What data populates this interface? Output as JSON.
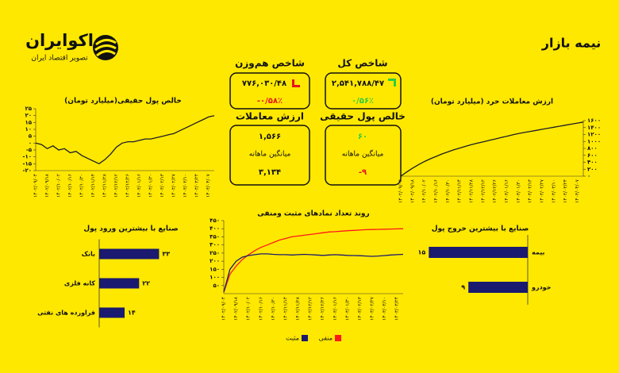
{
  "header": {
    "title": "نیمه بازار",
    "brand": "اکوایران",
    "tagline": "تصویر اقتصاد ایران"
  },
  "stats": {
    "total_index": {
      "title": "شاخص کل",
      "value": "۲,۵۴۱,۷۸۸/۴۷",
      "change": "۰/۵۶٪"
    },
    "equal_weight_index": {
      "title": "شاخص هم‌وزن",
      "value": "۷۷۶,۰۳۰/۴۸",
      "change": "-۰/۵۸٪"
    },
    "real_money": {
      "title": "خالص پول حقیقی",
      "value": "۶۰",
      "avg_label": "میانگین ماهانه",
      "avg": "-۹"
    },
    "trade_value": {
      "title": "ارزش معاملات",
      "value": "۱,۵۶۶",
      "avg_label": "میانگین ماهانه",
      "avg": "۳,۱۳۴"
    }
  },
  "chart_data": [
    {
      "type": "line",
      "title": "خالص پول حقیقی(میلیارد تومان)",
      "color": "#1c1c2a",
      "categories": [
        "۱۴۰۲/۰۹/۰۴",
        null,
        "۱۴۰۲/۰۹/۱۸",
        null,
        "۱۴۰۲/۱۰/۰۲",
        null,
        "۱۴۰۲/۱۰/۱۶",
        null,
        "۱۴۰۲/۱۰/۳۰",
        null,
        "۱۴۰۲/۱۱/۱۴",
        null,
        "۱۴۰۲/۱۱/۲۸",
        null,
        "۱۴۰۲/۱۲/۱۲",
        null,
        "۱۴۰۲/۱۲/۲۶",
        null,
        "۱۴۰۳/۰۱/۱۶",
        null,
        "۱۴۰۳/۰۱/۳۰",
        null,
        "۱۴۰۳/۰۲/۱۳",
        null,
        "۱۴۰۳/۰۲/۲۷",
        null,
        "۱۴۰۳/۰۳/۱۰",
        null,
        "۱۴۰۳/۰۳/۲۴",
        null,
        "۱۴۰۳/۰۴/۰۷",
        null
      ],
      "values": [
        0,
        -1,
        -4,
        -2,
        -5,
        -4,
        -7,
        -6,
        -9,
        -11,
        -13,
        -15,
        -12,
        -8,
        -3,
        0,
        1,
        1,
        2,
        3,
        3,
        4,
        5,
        6,
        7,
        9,
        11,
        13,
        15,
        17,
        19,
        20
      ],
      "ylim": [
        -20,
        25
      ],
      "yticks": [
        {
          "value": 25,
          "label": "۲۵"
        },
        {
          "value": 20,
          "label": "۲۰"
        },
        {
          "value": 15,
          "label": "۱۵"
        },
        {
          "value": 10,
          "label": "۱۰"
        },
        {
          "value": 5,
          "label": "۵"
        },
        {
          "value": 0,
          "label": "۰"
        },
        {
          "value": -5,
          "label": "-۵"
        },
        {
          "value": -10,
          "label": "-۱۰"
        },
        {
          "value": -15,
          "label": "-۱۵"
        },
        {
          "value": -20,
          "label": "-۲۰"
        }
      ]
    },
    {
      "type": "line",
      "title": "ارزش معاملات خرد (میلیارد تومان)",
      "color": "#1c1c2a",
      "categories": [
        "۱۴۰۲/۰۹/۰۴",
        null,
        "۱۴۰۲/۰۹/۱۸",
        null,
        "۱۴۰۲/۱۰/۰۲",
        null,
        "۱۴۰۲/۱۰/۱۶",
        null,
        "۱۴۰۲/۱۰/۳۰",
        null,
        "۱۴۰۲/۱۱/۱۴",
        null,
        "۱۴۰۲/۱۱/۲۸",
        null,
        "۱۴۰۲/۱۲/۱۲",
        null,
        "۱۴۰۲/۱۲/۲۶",
        null,
        "۱۴۰۳/۰۱/۱۶",
        null,
        "۱۴۰۳/۰۱/۳۰",
        null,
        "۱۴۰۳/۰۲/۱۳",
        null,
        "۱۴۰۳/۰۲/۲۷",
        null,
        "۱۴۰۳/۰۳/۱۰",
        null,
        "۱۴۰۳/۰۳/۲۴",
        null,
        "۱۴۰۳/۰۴/۰۷",
        null
      ],
      "values": [
        0,
        120,
        230,
        330,
        420,
        500,
        570,
        640,
        700,
        760,
        810,
        860,
        910,
        950,
        990,
        1030,
        1070,
        1110,
        1150,
        1190,
        1230,
        1260,
        1290,
        1320,
        1350,
        1380,
        1410,
        1440,
        1470,
        1500,
        1530,
        1560
      ],
      "ylim": [
        0,
        1600
      ],
      "yticks": [
        {
          "value": 0,
          "label": "۰"
        },
        {
          "value": 200,
          "label": "۲۰۰"
        },
        {
          "value": 400,
          "label": "۴۰۰"
        },
        {
          "value": 600,
          "label": "۶۰۰"
        },
        {
          "value": 800,
          "label": "۸۰۰"
        },
        {
          "value": 1000,
          "label": "۱۰۰۰"
        },
        {
          "value": 1200,
          "label": "۱۲۰۰"
        },
        {
          "value": 1400,
          "label": "۱۴۰۰"
        },
        {
          "value": 1600,
          "label": "۱۶۰۰"
        }
      ]
    },
    {
      "type": "line",
      "title": "روند تعداد نمادهای مثبت ومنفی",
      "legend": "bottom",
      "categories": [
        "۱۴۰۲/۰۹/۰۴",
        null,
        "۱۴۰۲/۰۹/۱۸",
        null,
        "۱۴۰۲/۱۰/۰۲",
        null,
        "۱۴۰۲/۱۰/۱۶",
        null,
        "۱۴۰۲/۱۰/۳۰",
        null,
        "۱۴۰۲/۱۱/۱۴",
        null,
        "۱۴۰۲/۱۱/۲۸",
        null,
        "۱۴۰۲/۱۲/۱۲",
        null,
        "۱۴۰۲/۱۲/۲۶",
        null,
        "۱۴۰۳/۰۱/۱۶",
        null,
        "۱۴۰۳/۰۱/۳۰",
        null,
        "۱۴۰۳/۰۲/۱۳",
        null,
        "۱۴۰۳/۰۲/۲۷",
        null,
        "۱۴۰۳/۰۳/۱۰",
        null,
        "۱۴۰۳/۰۳/۲۴",
        null
      ],
      "series": [
        {
          "name": "منفی",
          "color": "#ff1a1a",
          "values": [
            10,
            120,
            170,
            210,
            240,
            265,
            285,
            300,
            315,
            330,
            340,
            350,
            355,
            360,
            365,
            370,
            375,
            380,
            382,
            385,
            388,
            390,
            392,
            394,
            395,
            396,
            397,
            398,
            399,
            400
          ]
        },
        {
          "name": "مثبت",
          "color": "#1a1a6e",
          "values": [
            10,
            150,
            200,
            225,
            235,
            240,
            245,
            245,
            242,
            240,
            240,
            238,
            240,
            242,
            240,
            238,
            236,
            238,
            240,
            238,
            236,
            235,
            234,
            232,
            230,
            232,
            235,
            238,
            240,
            242
          ]
        }
      ],
      "ylim": [
        0,
        450
      ],
      "yticks": [
        {
          "value": 50,
          "label": "۵۰"
        },
        {
          "value": 100,
          "label": "۱۰۰"
        },
        {
          "value": 150,
          "label": "۱۵۰"
        },
        {
          "value": 200,
          "label": "۲۰۰"
        },
        {
          "value": 250,
          "label": "۲۵۰"
        },
        {
          "value": 300,
          "label": "۳۰۰"
        },
        {
          "value": 350,
          "label": "۳۵۰"
        },
        {
          "value": 400,
          "label": "۴۰۰"
        },
        {
          "value": 450,
          "label": "۴۵۰"
        }
      ]
    },
    {
      "type": "hbar",
      "title": "صنایع با بیشترین ورود پول",
      "color": "#1a1a70",
      "categories": [
        "بانک",
        "کانه فلزی",
        "فراورده های نفتی"
      ],
      "values": [
        33,
        22,
        14
      ],
      "value_labels": [
        "۳۳",
        "۲۲",
        "۱۴"
      ],
      "xlim": [
        0,
        35
      ]
    },
    {
      "type": "hbar",
      "title": "صنایع با بیشترین خروج پول",
      "color": "#1a1a70",
      "categories": [
        "بیمه",
        "خودرو"
      ],
      "values": [
        15,
        9
      ],
      "value_labels": [
        "۱۵",
        "۹"
      ],
      "xlim": [
        0,
        16
      ]
    }
  ]
}
